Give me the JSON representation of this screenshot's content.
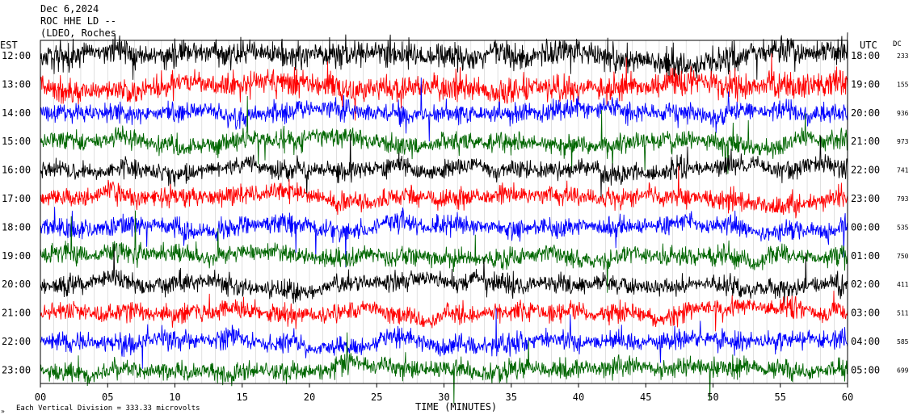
{
  "header": {
    "line1": "Dec 6,2024",
    "line2": "ROC HHE LD --",
    "line3": "(LDEO, Roches"
  },
  "chart_data": {
    "type": "line",
    "title": "ROC HHE LD --",
    "xlabel": "TIME (MINUTES)",
    "xlim": [
      0,
      60
    ],
    "x_ticks": [
      "00",
      "05",
      "10",
      "15",
      "20",
      "25",
      "30",
      "35",
      "40",
      "45",
      "50",
      "55",
      "60"
    ],
    "left_axis_label": "EST",
    "right_axis_label": "UTC",
    "dc_label": "DC",
    "footnote": "Each Vertical Division =  333.33 microvolts",
    "trace_colors": [
      "#000000",
      "#ff0000",
      "#0000ff",
      "#006600"
    ],
    "rows": [
      {
        "est": "12:00",
        "utc": "18:00",
        "dc": "233"
      },
      {
        "est": "13:00",
        "utc": "19:00",
        "dc": "155"
      },
      {
        "est": "14:00",
        "utc": "20:00",
        "dc": "936"
      },
      {
        "est": "15:00",
        "utc": "21:00",
        "dc": "973"
      },
      {
        "est": "16:00",
        "utc": "22:00",
        "dc": "741"
      },
      {
        "est": "17:00",
        "utc": "23:00",
        "dc": "793"
      },
      {
        "est": "18:00",
        "utc": "00:00",
        "dc": "535"
      },
      {
        "est": "19:00",
        "utc": "01:00",
        "dc": "750"
      },
      {
        "est": "20:00",
        "utc": "02:00",
        "dc": "411"
      },
      {
        "est": "21:00",
        "utc": "03:00",
        "dc": "511"
      },
      {
        "est": "22:00",
        "utc": "04:00",
        "dc": "585"
      },
      {
        "est": "23:00",
        "utc": "05:00",
        "dc": "699"
      }
    ]
  }
}
